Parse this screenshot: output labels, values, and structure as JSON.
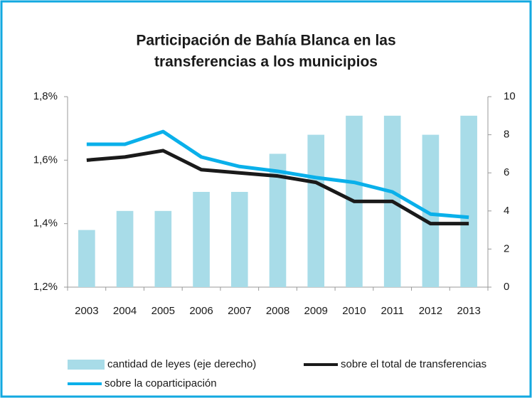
{
  "chart_data": {
    "type": "bar_line",
    "title": [
      "Participación de Bahía Blanca en las",
      "transferencias a los municipios"
    ],
    "categories": [
      "2003",
      "2004",
      "2005",
      "2006",
      "2007",
      "2008",
      "2009",
      "2010",
      "2011",
      "2012",
      "2013"
    ],
    "series": [
      {
        "name": "cantidad de leyes (eje derecho)",
        "type": "bar",
        "axis": "y2",
        "color": "#a8dce8",
        "values": [
          3,
          4,
          4,
          5,
          5,
          7,
          8,
          9,
          9,
          8,
          9
        ]
      },
      {
        "name": "sobre el total de transferencias",
        "type": "line",
        "axis": "y",
        "color": "#1a1a1a",
        "values": [
          1.6,
          1.61,
          1.63,
          1.57,
          1.56,
          1.55,
          1.53,
          1.47,
          1.47,
          1.4,
          1.4
        ]
      },
      {
        "name": "sobre la coparticipación",
        "type": "line",
        "axis": "y",
        "color": "#0ab0ea",
        "values": [
          1.65,
          1.65,
          1.69,
          1.61,
          1.58,
          1.565,
          1.545,
          1.53,
          1.5,
          1.43,
          1.42
        ]
      }
    ],
    "ylim": [
      1.2,
      1.8
    ],
    "yticks": [
      {
        "value": 1.2,
        "label": "1,2%"
      },
      {
        "value": 1.4,
        "label": "1,4%"
      },
      {
        "value": 1.6,
        "label": "1,6%"
      },
      {
        "value": 1.8,
        "label": "1,8%"
      }
    ],
    "y2lim": [
      0,
      10
    ],
    "y2ticks": [
      0,
      2,
      4,
      6,
      8,
      10
    ],
    "grid": false,
    "legend": "bottom"
  }
}
